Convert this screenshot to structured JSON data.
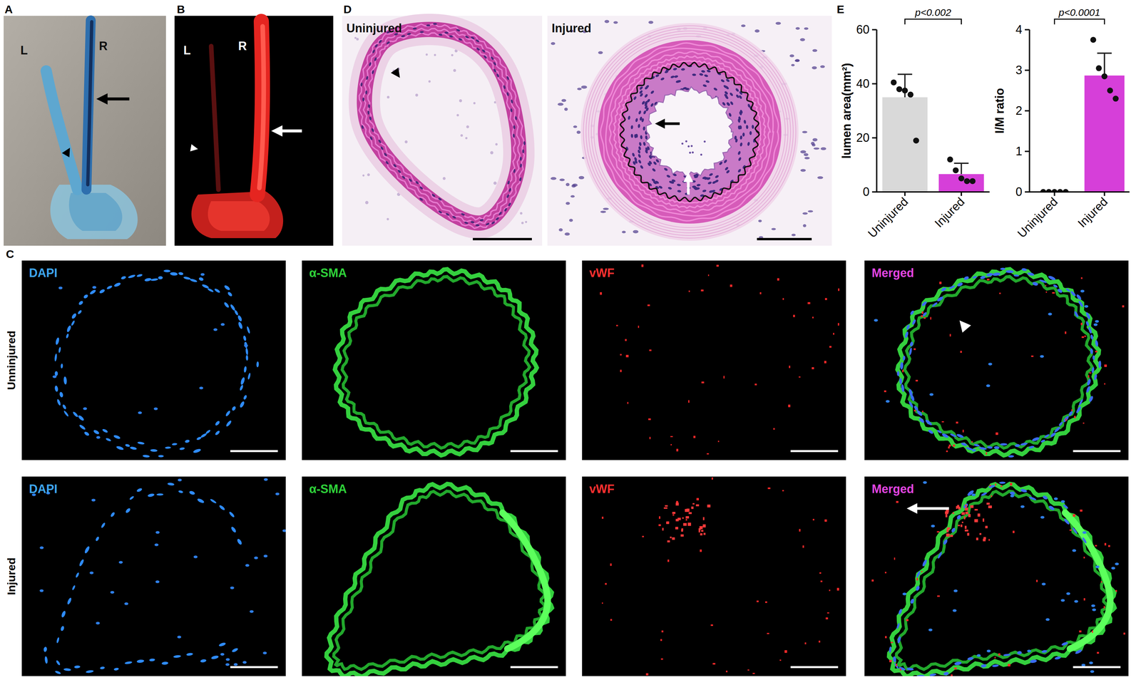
{
  "panels": {
    "A": {
      "label": "A",
      "left": "L",
      "right": "R"
    },
    "B": {
      "label": "B",
      "left": "L",
      "right": "R"
    },
    "C": {
      "label": "C",
      "rows": [
        {
          "name": "Unninjured",
          "channels": [
            "DAPI",
            "α-SMA",
            "vWF",
            "Merged"
          ]
        },
        {
          "name": "Injured",
          "channels": [
            "DAPI",
            "α-SMA",
            "vWF",
            "Merged"
          ]
        }
      ]
    },
    "D": {
      "label": "D",
      "images": [
        "Uninjured",
        "Injured"
      ]
    },
    "E": {
      "label": "E"
    }
  },
  "chart_data": [
    {
      "type": "bar",
      "ylabel": "lumen area(mm²)",
      "categories": [
        "Uninjured",
        "Injured"
      ],
      "values": [
        35,
        6.6
      ],
      "errors": [
        8.5,
        4
      ],
      "points": [
        [
          40.5,
          38,
          37.5,
          36,
          19
        ],
        [
          12,
          8,
          5,
          4,
          4
        ]
      ],
      "colors": [
        "#d9d9d9",
        "#d63fd9"
      ],
      "ylim": [
        0,
        60
      ],
      "yticks": [
        0,
        20,
        40,
        60
      ],
      "annotations": [
        {
          "text": "p<0.002"
        }
      ]
    },
    {
      "type": "bar",
      "ylabel": "I/M ratio",
      "categories": [
        "Uninjured",
        "Injured"
      ],
      "values": [
        0,
        2.87
      ],
      "errors": [
        0,
        0.55
      ],
      "points": [
        [
          0,
          0,
          0,
          0,
          0
        ],
        [
          3.75,
          3.05,
          2.85,
          2.5,
          2.3
        ]
      ],
      "colors": [
        "#d9d9d9",
        "#d63fd9"
      ],
      "ylim": [
        0,
        4
      ],
      "yticks": [
        0,
        1,
        2,
        3,
        4
      ],
      "annotations": [
        {
          "text": "p<0.0001"
        }
      ]
    }
  ]
}
